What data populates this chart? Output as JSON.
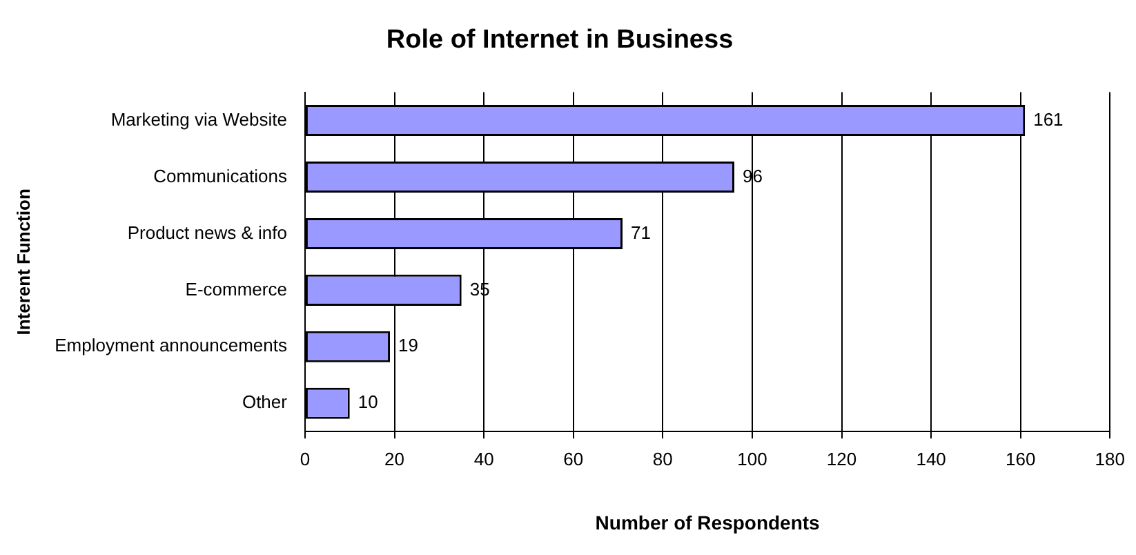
{
  "chart_data": {
    "type": "bar",
    "orientation": "horizontal",
    "title": "Role of Internet in Business",
    "xlabel": "Number of Respondents",
    "ylabel": "Interent Function",
    "categories": [
      "Marketing via Website",
      "Communications",
      "Product news & info",
      "E-commerce",
      "Employment announcements",
      "Other"
    ],
    "values": [
      161,
      96,
      71,
      35,
      19,
      10
    ],
    "color": "#9999ff",
    "xlim": [
      0,
      180
    ],
    "xticks": [
      0,
      20,
      40,
      60,
      80,
      100,
      120,
      140,
      160,
      180
    ],
    "grid": "x",
    "data_labels": true
  }
}
